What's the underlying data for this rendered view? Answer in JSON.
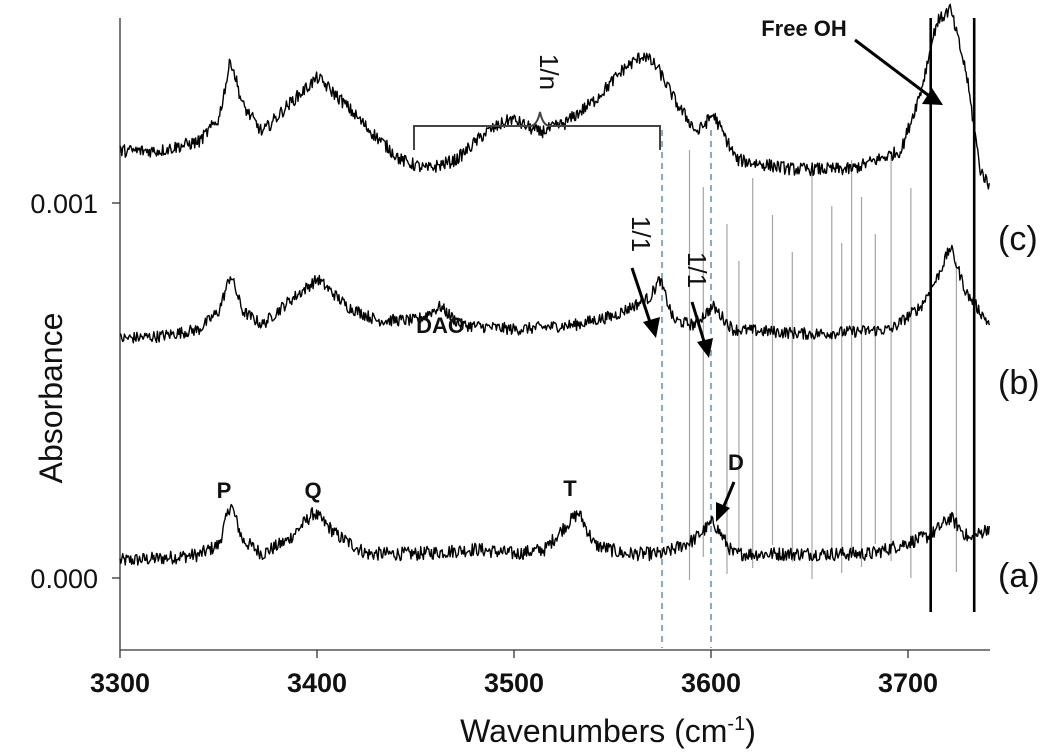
{
  "chart_data": {
    "type": "line",
    "title": "",
    "xlabel": "Wavenumbers (cm-1)",
    "xlabel_main": "Wavenumbers (cm",
    "xlabel_sup": "-1",
    "xlabel_close": ")",
    "ylabel": "Absorbance",
    "xlim": [
      3300,
      3740
    ],
    "ylim": [
      -0.00019,
      0.00119
    ],
    "x_ticks": [
      "3300",
      "3400",
      "3500",
      "3600",
      "3700"
    ],
    "y_ticks": [
      "0.000",
      "0.001"
    ],
    "grid": false,
    "series": [
      {
        "name": "(a)",
        "offset": 0.0,
        "noise": 1.5e-05,
        "points": [
          [
            3300,
            5e-06
          ],
          [
            3320,
            1e-05
          ],
          [
            3340,
            1.8e-05
          ],
          [
            3350,
            4e-05
          ],
          [
            3356,
            0.00013
          ],
          [
            3362,
            5e-05
          ],
          [
            3372,
            2e-05
          ],
          [
            3385,
            5e-05
          ],
          [
            3398,
            0.00011
          ],
          [
            3410,
            6e-05
          ],
          [
            3425,
            2e-05
          ],
          [
            3450,
            2e-05
          ],
          [
            3480,
            3e-05
          ],
          [
            3500,
            2e-05
          ],
          [
            3515,
            3e-05
          ],
          [
            3525,
            8e-05
          ],
          [
            3532,
            0.00011
          ],
          [
            3540,
            4e-05
          ],
          [
            3555,
            2e-05
          ],
          [
            3575,
            2e-05
          ],
          [
            3590,
            5e-05
          ],
          [
            3600,
            9e-05
          ],
          [
            3610,
            2e-05
          ],
          [
            3640,
            2e-05
          ],
          [
            3680,
            2e-05
          ],
          [
            3710,
            6e-05
          ],
          [
            3720,
            0.0001
          ],
          [
            3730,
            5e-05
          ],
          [
            3740,
            8e-05
          ]
        ]
      },
      {
        "name": "(b)",
        "offset": 0.0005,
        "noise": 1.3e-05,
        "points": [
          [
            3300,
            -1e-05
          ],
          [
            3320,
            -5e-06
          ],
          [
            3340,
            1e-05
          ],
          [
            3350,
            5e-05
          ],
          [
            3356,
            0.00013
          ],
          [
            3362,
            5e-05
          ],
          [
            3372,
            2e-05
          ],
          [
            3385,
            7e-05
          ],
          [
            3400,
            0.00012
          ],
          [
            3415,
            6e-05
          ],
          [
            3430,
            3e-05
          ],
          [
            3450,
            3e-05
          ],
          [
            3462,
            6e-05
          ],
          [
            3472,
            2e-05
          ],
          [
            3500,
            1e-05
          ],
          [
            3530,
            2e-05
          ],
          [
            3550,
            4e-05
          ],
          [
            3568,
            8e-05
          ],
          [
            3573,
            0.00012
          ],
          [
            3580,
            3e-05
          ],
          [
            3590,
            2e-05
          ],
          [
            3600,
            6e-05
          ],
          [
            3610,
            1e-05
          ],
          [
            3650,
            0.0
          ],
          [
            3690,
            1e-05
          ],
          [
            3705,
            6e-05
          ],
          [
            3713,
            0.00012
          ],
          [
            3720,
            0.00019
          ],
          [
            3728,
            9e-05
          ],
          [
            3740,
            2e-05
          ]
        ]
      },
      {
        "name": "(c)",
        "offset": 0.00091,
        "noise": 1.4e-05,
        "points": [
          [
            3300,
            -1e-05
          ],
          [
            3320,
            -1e-05
          ],
          [
            3340,
            1e-05
          ],
          [
            3350,
            6e-05
          ],
          [
            3356,
            0.00019
          ],
          [
            3362,
            9e-05
          ],
          [
            3372,
            3e-05
          ],
          [
            3385,
            9e-05
          ],
          [
            3400,
            0.00015
          ],
          [
            3412,
            0.0001
          ],
          [
            3425,
            4e-05
          ],
          [
            3442,
            -3e-05
          ],
          [
            3455,
            -5e-05
          ],
          [
            3470,
            -3e-05
          ],
          [
            3485,
            3e-05
          ],
          [
            3498,
            6e-05
          ],
          [
            3512,
            3e-05
          ],
          [
            3525,
            5e-05
          ],
          [
            3540,
            0.0001
          ],
          [
            3555,
            0.00017
          ],
          [
            3565,
            0.0002
          ],
          [
            3572,
            0.00017
          ],
          [
            3582,
            9e-05
          ],
          [
            3592,
            3e-05
          ],
          [
            3600,
            7e-05
          ],
          [
            3612,
            -3e-05
          ],
          [
            3640,
            -5e-05
          ],
          [
            3670,
            -5e-05
          ],
          [
            3695,
            -1e-05
          ],
          [
            3705,
            0.00012
          ],
          [
            3713,
            0.00027
          ],
          [
            3720,
            0.0003
          ],
          [
            3728,
            0.00016
          ],
          [
            3735,
            -5e-05
          ],
          [
            3740,
            -9e-05
          ]
        ]
      }
    ],
    "spikes": [
      3588,
      3595,
      3607,
      3613,
      3620,
      3630,
      3640,
      3650,
      3660,
      3665,
      3670,
      3675,
      3682,
      3690,
      3700,
      3710,
      3723,
      3732
    ],
    "annotations": {
      "free_oh": "Free OH",
      "one_n": "1/n",
      "one_one_left": "1/1",
      "one_one_right": "1/1",
      "dac": "DAC",
      "p": "P",
      "q": "Q",
      "t": "T",
      "d": "D"
    },
    "reference_lines_x": [
      3575,
      3600
    ],
    "bracket_x_range": [
      3448,
      3573
    ],
    "trace_labels": [
      "(c)",
      "(b)",
      "(a)"
    ]
  }
}
